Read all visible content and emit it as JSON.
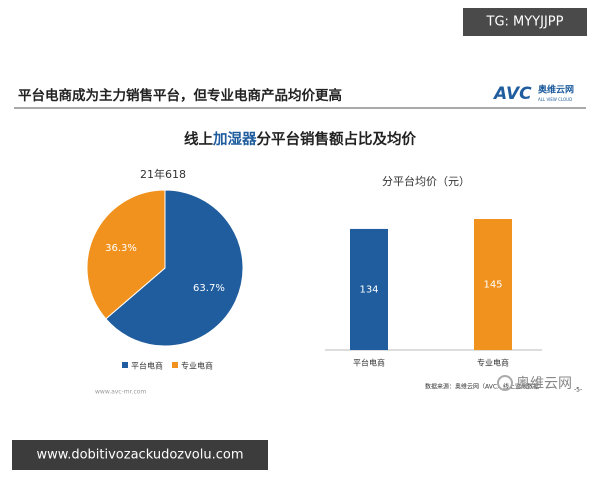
{
  "watermark_top": "TG: MYYJJPP",
  "header": {
    "title": "平台电商成为主力销售平台，但专业电商产品均价更高",
    "logo": "AVC",
    "logo_cn": "奥维云网",
    "logo_en": "ALL VIEW CLOUD"
  },
  "chart_title_parts": [
    "线上",
    "加湿器",
    "分平台销售额占比及均价"
  ],
  "chart_data": [
    {
      "type": "pie",
      "subtitle": "21年618",
      "categories": [
        "平台电商",
        "专业电商"
      ],
      "values": [
        63.7,
        36.3
      ],
      "value_labels": [
        "63.7%",
        "36.3%"
      ],
      "colors": [
        "#1f5d9e",
        "#f0921d"
      ]
    },
    {
      "type": "bar",
      "title": "分平台均价（元）",
      "categories": [
        "平台电商",
        "专业电商"
      ],
      "values": [
        134,
        145
      ],
      "colors": [
        "#1f5d9e",
        "#f0921d"
      ]
    }
  ],
  "footer": {
    "source": "数据来源：奥维云网（AVC）线上监测数据",
    "website": "www.avc-mr.com",
    "page": "-5-"
  },
  "watermark_bottom": "www.dobitivozackudozvolu.com",
  "watermark_corner": "奥维云网"
}
